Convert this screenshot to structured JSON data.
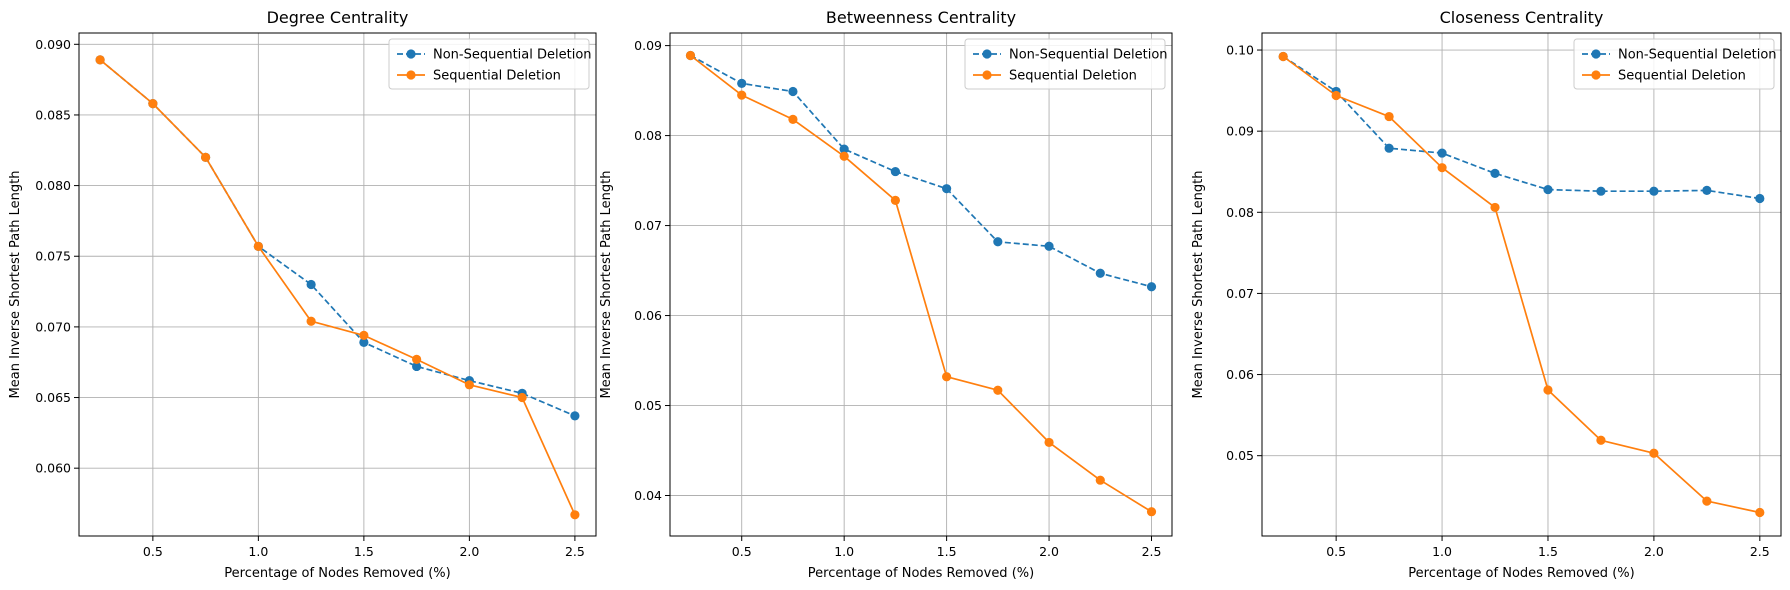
{
  "chart_data": [
    {
      "type": "line",
      "title": "Degree Centrality",
      "xlabel": "Percentage of Nodes Removed (%)",
      "ylabel": "Mean Inverse Shortest Path Length",
      "xlim": [
        0.15,
        2.6
      ],
      "ylim": [
        0.0552,
        0.0908
      ],
      "x_ticks": [
        0.5,
        1.0,
        1.5,
        2.0,
        2.5
      ],
      "x_tick_labels": [
        "0.5",
        "1.0",
        "1.5",
        "2.0",
        "2.5"
      ],
      "y_ticks": [
        0.06,
        0.065,
        0.07,
        0.075,
        0.08,
        0.085,
        0.09
      ],
      "y_tick_labels": [
        "0.060",
        "0.065",
        "0.070",
        "0.075",
        "0.080",
        "0.085",
        "0.090"
      ],
      "grid": true,
      "legend": "top-right",
      "x": [
        0.25,
        0.5,
        0.75,
        1.0,
        1.25,
        1.5,
        1.75,
        2.0,
        2.25,
        2.5
      ],
      "series": [
        {
          "name": "Non-Sequential Deletion",
          "color": "#1f77b4",
          "dashed": true,
          "values": [
            0.0889,
            0.0858,
            0.082,
            0.0757,
            0.073,
            0.0689,
            0.0672,
            0.0662,
            0.0653,
            0.0637
          ]
        },
        {
          "name": "Sequential Deletion",
          "color": "#ff7f0e",
          "dashed": false,
          "values": [
            0.0889,
            0.0858,
            0.082,
            0.0757,
            0.0704,
            0.0694,
            0.0677,
            0.0659,
            0.065,
            0.0567
          ]
        }
      ]
    },
    {
      "type": "line",
      "title": "Betweenness Centrality",
      "xlabel": "Percentage of Nodes Removed (%)",
      "ylabel": "Mean Inverse Shortest Path Length",
      "xlim": [
        0.15,
        2.6
      ],
      "ylim": [
        0.0355,
        0.0914
      ],
      "x_ticks": [
        0.5,
        1.0,
        1.5,
        2.0,
        2.5
      ],
      "x_tick_labels": [
        "0.5",
        "1.0",
        "1.5",
        "2.0",
        "2.5"
      ],
      "y_ticks": [
        0.04,
        0.05,
        0.06,
        0.07,
        0.08,
        0.09
      ],
      "y_tick_labels": [
        "0.04",
        "0.05",
        "0.06",
        "0.07",
        "0.08",
        "0.09"
      ],
      "grid": true,
      "legend": "top-right",
      "x": [
        0.25,
        0.5,
        0.75,
        1.0,
        1.25,
        1.5,
        1.75,
        2.0,
        2.25,
        2.5
      ],
      "series": [
        {
          "name": "Non-Sequential Deletion",
          "color": "#1f77b4",
          "dashed": true,
          "values": [
            0.0889,
            0.0858,
            0.0849,
            0.0785,
            0.076,
            0.0741,
            0.0682,
            0.0677,
            0.0647,
            0.0632
          ]
        },
        {
          "name": "Sequential Deletion",
          "color": "#ff7f0e",
          "dashed": false,
          "values": [
            0.0889,
            0.0845,
            0.0818,
            0.0777,
            0.0728,
            0.0532,
            0.0517,
            0.0459,
            0.0417,
            0.0382
          ]
        }
      ]
    },
    {
      "type": "line",
      "title": "Closeness Centrality",
      "xlabel": "Percentage of Nodes Removed (%)",
      "ylabel": "Mean Inverse Shortest Path Length",
      "xlim": [
        0.15,
        2.6
      ],
      "ylim": [
        0.0401,
        0.1021
      ],
      "x_ticks": [
        0.5,
        1.0,
        1.5,
        2.0,
        2.5
      ],
      "x_tick_labels": [
        "0.5",
        "1.0",
        "1.5",
        "2.0",
        "2.5"
      ],
      "y_ticks": [
        0.05,
        0.06,
        0.07,
        0.08,
        0.09,
        0.1
      ],
      "y_tick_labels": [
        "0.05",
        "0.06",
        "0.07",
        "0.08",
        "0.09",
        "0.10"
      ],
      "grid": true,
      "legend": "top-right",
      "x": [
        0.25,
        0.5,
        0.75,
        1.0,
        1.25,
        1.5,
        1.75,
        2.0,
        2.25,
        2.5
      ],
      "series": [
        {
          "name": "Non-Sequential Deletion",
          "color": "#1f77b4",
          "dashed": true,
          "values": [
            0.0992,
            0.0949,
            0.0879,
            0.0873,
            0.0848,
            0.0828,
            0.0826,
            0.0826,
            0.0827,
            0.0817
          ]
        },
        {
          "name": "Sequential Deletion",
          "color": "#ff7f0e",
          "dashed": false,
          "values": [
            0.0992,
            0.0944,
            0.0918,
            0.0855,
            0.0806,
            0.0581,
            0.0519,
            0.0503,
            0.0444,
            0.043
          ]
        }
      ]
    }
  ]
}
